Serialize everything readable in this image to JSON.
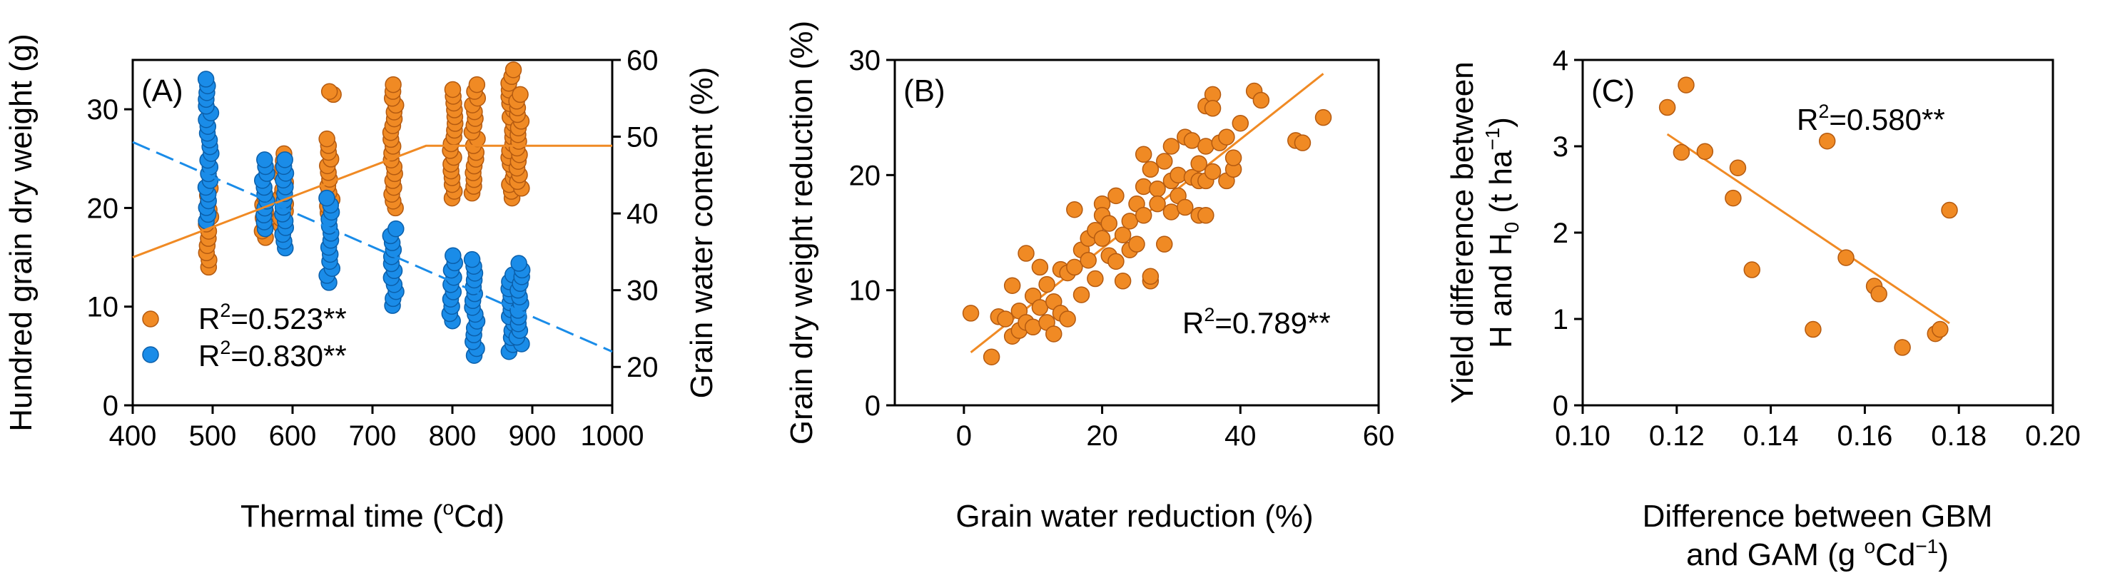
{
  "colors": {
    "orange": "#F08A24",
    "orange_edge": "#B45A10",
    "blue": "#1A8CE8",
    "blue_edge": "#0B5FAA"
  },
  "chart_data": [
    {
      "panel": "A",
      "type": "scatter",
      "label": "(A)",
      "xlabel_prefix": "Thermal time (",
      "xlabel_sup": "o",
      "xlabel_suffix": "Cd)",
      "ylabel": "Hundred grain dry weight (g)",
      "y2label": "Grain water content (%)",
      "xlim": [
        400,
        1000
      ],
      "ylim": [
        0,
        35
      ],
      "y2lim": [
        15,
        60
      ],
      "xticks": [
        400,
        500,
        600,
        700,
        800,
        900,
        1000
      ],
      "yticks": [
        0,
        10,
        20,
        30
      ],
      "y2ticks": [
        20,
        30,
        40,
        50,
        60
      ],
      "series": [
        {
          "name": "Hundred grain dry weight",
          "axis": "left",
          "color": "orange",
          "r2_prefix": "R",
          "r2_sup": "2",
          "r2_value": "=0.523**",
          "groups": [
            {
              "x": 495,
              "ymin": 14.0,
              "ymax": 22.0
            },
            {
              "x": 565,
              "ymin": 17.0,
              "ymax": 21.0
            },
            {
              "x": 588,
              "ymin": 17.5,
              "ymax": 25.5
            },
            {
              "x": 646,
              "ymin": 19.5,
              "ymax": 27.0
            },
            {
              "x": 648,
              "ymin": 31.5,
              "ymax": 31.8
            },
            {
              "x": 726,
              "ymin": 20.0,
              "ymax": 32.5
            },
            {
              "x": 800,
              "ymin": 21.0,
              "ymax": 32.0
            },
            {
              "x": 828,
              "ymin": 21.5,
              "ymax": 32.5
            },
            {
              "x": 874,
              "ymin": 21.0,
              "ymax": 34.0
            },
            {
              "x": 884,
              "ymin": 22.0,
              "ymax": 31.5
            }
          ],
          "fit": [
            {
              "x": 400,
              "y": 15.0
            },
            {
              "x": 767,
              "y": 26.3
            },
            {
              "x": 1000,
              "y": 26.3
            }
          ]
        },
        {
          "name": "Grain water content",
          "axis": "right",
          "color": "blue",
          "r2_prefix": "R",
          "r2_sup": "2",
          "r2_value": "=0.830**",
          "groups": [
            {
              "x": 495,
              "ymin": 39.0,
              "ymax": 57.5
            },
            {
              "x": 565,
              "ymin": 38.0,
              "ymax": 47.0
            },
            {
              "x": 588,
              "ymin": 35.5,
              "ymax": 47.0
            },
            {
              "x": 646,
              "ymin": 31.0,
              "ymax": 42.0
            },
            {
              "x": 726,
              "ymin": 28.0,
              "ymax": 38.0
            },
            {
              "x": 800,
              "ymin": 26.0,
              "ymax": 34.5
            },
            {
              "x": 828,
              "ymin": 21.5,
              "ymax": 34.0
            },
            {
              "x": 874,
              "ymin": 22.0,
              "ymax": 32.0
            },
            {
              "x": 884,
              "ymin": 23.0,
              "ymax": 33.5
            }
          ],
          "fit": [
            {
              "x": 400,
              "y": 49.3
            },
            {
              "x": 1000,
              "y": 22.0
            }
          ]
        }
      ]
    },
    {
      "panel": "B",
      "type": "scatter",
      "label": "(B)",
      "xlabel": "Grain water reduction (%)",
      "ylabel": "Grain dry weight reduction (%)",
      "xlim": [
        -10,
        60
      ],
      "ylim": [
        0,
        30
      ],
      "xticks": [
        0,
        20,
        40,
        60
      ],
      "yticks": [
        0,
        10,
        20,
        30
      ],
      "r2_prefix": "R",
      "r2_sup": "2",
      "r2_value": "=0.789**",
      "points": [
        [
          1,
          8
        ],
        [
          4,
          4.2
        ],
        [
          5,
          7.7
        ],
        [
          6,
          7.5
        ],
        [
          7,
          10.4
        ],
        [
          7,
          6
        ],
        [
          8,
          8.2
        ],
        [
          8,
          6.5
        ],
        [
          9,
          13.2
        ],
        [
          9,
          7.2
        ],
        [
          10,
          9.5
        ],
        [
          10,
          6.8
        ],
        [
          11,
          12
        ],
        [
          11,
          8.5
        ],
        [
          12,
          7.2
        ],
        [
          12,
          10.5
        ],
        [
          13,
          9
        ],
        [
          13,
          6.2
        ],
        [
          14,
          11.8
        ],
        [
          14,
          8
        ],
        [
          15,
          7.5
        ],
        [
          15,
          11.5
        ],
        [
          16,
          17
        ],
        [
          16,
          12
        ],
        [
          17,
          13.5
        ],
        [
          17,
          9.6
        ],
        [
          18,
          14.5
        ],
        [
          18,
          12.6
        ],
        [
          19,
          15.2
        ],
        [
          19,
          11
        ],
        [
          20,
          14.5
        ],
        [
          20,
          17.5
        ],
        [
          20,
          16.5
        ],
        [
          21,
          13
        ],
        [
          21,
          15.8
        ],
        [
          22,
          18.2
        ],
        [
          22,
          12.5
        ],
        [
          23,
          14.8
        ],
        [
          23,
          10.8
        ],
        [
          24,
          16
        ],
        [
          24,
          13.5
        ],
        [
          25,
          17.5
        ],
        [
          25,
          14
        ],
        [
          26,
          21.8
        ],
        [
          26,
          19
        ],
        [
          26,
          16.5
        ],
        [
          27,
          20.5
        ],
        [
          27,
          10.8
        ],
        [
          27,
          11.2
        ],
        [
          28,
          18.8
        ],
        [
          28,
          17.5
        ],
        [
          29,
          14
        ],
        [
          29,
          21.2
        ],
        [
          30,
          22.5
        ],
        [
          30,
          19.5
        ],
        [
          30,
          16.8
        ],
        [
          31,
          20
        ],
        [
          31,
          18.2
        ],
        [
          32,
          23.3
        ],
        [
          32,
          17.2
        ],
        [
          33,
          19.8
        ],
        [
          33,
          23
        ],
        [
          34,
          16.5
        ],
        [
          34,
          21
        ],
        [
          34,
          19.5
        ],
        [
          35,
          26
        ],
        [
          35,
          22.5
        ],
        [
          35,
          19.5
        ],
        [
          35,
          16.5
        ],
        [
          36,
          27
        ],
        [
          36,
          25.8
        ],
        [
          36,
          20.3
        ],
        [
          37,
          22.8
        ],
        [
          38,
          19.5
        ],
        [
          38,
          23.3
        ],
        [
          39,
          20.5
        ],
        [
          39,
          21.5
        ],
        [
          40,
          24.5
        ],
        [
          42,
          27.3
        ],
        [
          43,
          26.5
        ],
        [
          48,
          23
        ],
        [
          49,
          22.8
        ],
        [
          52,
          25
        ]
      ],
      "fit": [
        {
          "x": 1,
          "y": 4.6
        },
        {
          "x": 52,
          "y": 28.8
        }
      ]
    },
    {
      "panel": "C",
      "type": "scatter",
      "label": "(C)",
      "xlabel_line1": "Difference between GBM",
      "xlabel_line2_prefix": "and GAM (g ",
      "xlabel_line2_sup": "o",
      "xlabel_line2_mid": "Cd",
      "xlabel_line2_sup2": "−1",
      "xlabel_line2_suffix": ")",
      "ylabel_line1": "Yield difference between",
      "ylabel_line2_a": "H and H",
      "ylabel_line2_sub": "0",
      "ylabel_line2_b": " (t ha",
      "ylabel_line2_sup": "−1",
      "ylabel_line2_c": ")",
      "xlim": [
        0.1,
        0.2
      ],
      "ylim": [
        0,
        4
      ],
      "xticks": [
        "0.10",
        "0.12",
        "0.14",
        "0.16",
        "0.18",
        "0.20"
      ],
      "yticks": [
        0,
        1,
        2,
        3,
        4
      ],
      "r2_prefix": "R",
      "r2_sup": "2",
      "r2_value": "=0.580**",
      "points": [
        [
          0.118,
          3.45
        ],
        [
          0.121,
          2.93
        ],
        [
          0.122,
          3.71
        ],
        [
          0.126,
          2.94
        ],
        [
          0.132,
          2.4
        ],
        [
          0.133,
          2.75
        ],
        [
          0.136,
          1.57
        ],
        [
          0.149,
          0.88
        ],
        [
          0.152,
          3.06
        ],
        [
          0.156,
          1.71
        ],
        [
          0.162,
          1.38
        ],
        [
          0.163,
          1.29
        ],
        [
          0.168,
          0.67
        ],
        [
          0.175,
          0.83
        ],
        [
          0.176,
          0.88
        ],
        [
          0.178,
          2.26
        ]
      ],
      "fit": [
        {
          "x": 0.118,
          "y": 3.14
        },
        {
          "x": 0.178,
          "y": 0.95
        }
      ]
    }
  ]
}
